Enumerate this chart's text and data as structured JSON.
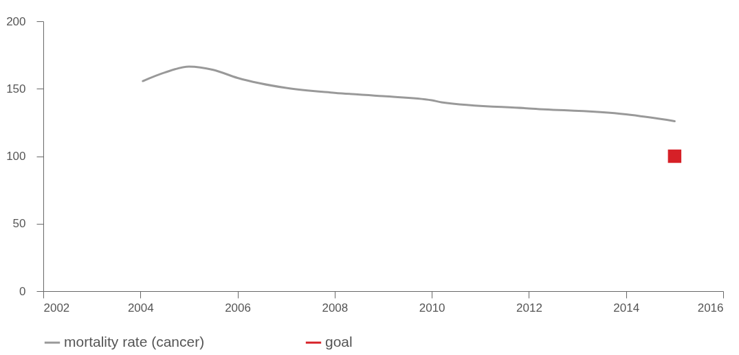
{
  "chart_data": {
    "type": "line",
    "x": [
      2004.05,
      2004.5,
      2005,
      2005.5,
      2006,
      2007,
      2008,
      2009,
      2010,
      2010.2,
      2012,
      2014,
      2015
    ],
    "series": [
      {
        "name": "mortality rate (cancer)",
        "color": "#999999",
        "values": [
          155.7,
          162,
          166.4,
          164,
          158,
          150.6,
          147,
          144.5,
          141.5,
          140,
          135.4,
          131,
          126
        ]
      },
      {
        "name": "goal",
        "type": "scatter",
        "marker": "square",
        "color": "#d62027",
        "x": [
          2015
        ],
        "values": [
          100
        ]
      }
    ],
    "xlim": [
      2002,
      2016
    ],
    "xticks": [
      2002,
      2004,
      2006,
      2008,
      2010,
      2012,
      2014,
      2016
    ],
    "ylim": [
      0,
      200
    ],
    "yticks": [
      0,
      50,
      100,
      150,
      200
    ],
    "grid": false,
    "legend": "bottom"
  }
}
